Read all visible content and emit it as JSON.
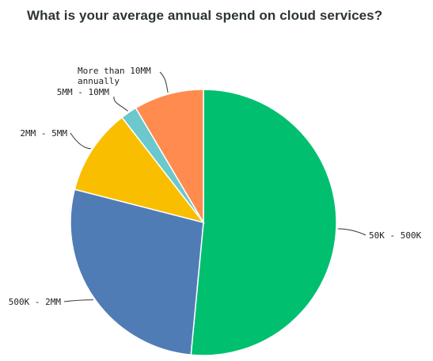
{
  "chart_data": {
    "type": "pie",
    "title": "What is your average annual spend on cloud services?",
    "slices": [
      {
        "label": "50K - 500K",
        "value": 51.5,
        "color": "#00bf6f"
      },
      {
        "label": "500K - 2MM",
        "value": 27.5,
        "color": "#507cb6"
      },
      {
        "label": "2MM - 5MM",
        "value": 10.5,
        "color": "#f9be00"
      },
      {
        "label": "5MM - 10MM",
        "value": 2.0,
        "color": "#6bc8cd"
      },
      {
        "label": "More than 10MM annually",
        "value": 8.5,
        "color": "#ff8b4f"
      }
    ]
  }
}
